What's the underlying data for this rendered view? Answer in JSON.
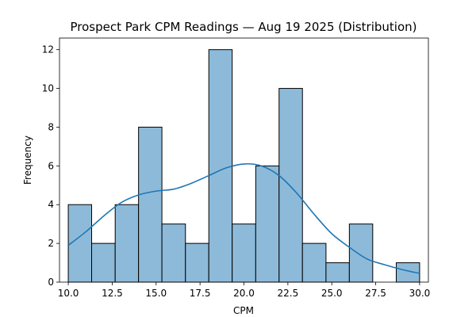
{
  "chart_data": {
    "type": "bar",
    "subtype": "histogram",
    "title": "Prospect Park CPM Readings — Aug 19 2025 (Distribution)",
    "xlabel": "CPM",
    "ylabel": "Frequency",
    "bins": [
      {
        "start": 10.0,
        "end": 11.33,
        "count": 4
      },
      {
        "start": 11.33,
        "end": 12.67,
        "count": 2
      },
      {
        "start": 12.67,
        "end": 14.0,
        "count": 4
      },
      {
        "start": 14.0,
        "end": 15.33,
        "count": 8
      },
      {
        "start": 15.33,
        "end": 16.67,
        "count": 3
      },
      {
        "start": 16.67,
        "end": 18.0,
        "count": 2
      },
      {
        "start": 18.0,
        "end": 19.33,
        "count": 12
      },
      {
        "start": 19.33,
        "end": 20.67,
        "count": 3
      },
      {
        "start": 20.67,
        "end": 22.0,
        "count": 6
      },
      {
        "start": 22.0,
        "end": 23.33,
        "count": 10
      },
      {
        "start": 23.33,
        "end": 24.67,
        "count": 2
      },
      {
        "start": 24.67,
        "end": 26.0,
        "count": 1
      },
      {
        "start": 26.0,
        "end": 27.33,
        "count": 3
      },
      {
        "start": 27.33,
        "end": 28.67,
        "count": 0
      },
      {
        "start": 28.67,
        "end": 30.0,
        "count": 1
      }
    ],
    "kde": {
      "x": [
        10.0,
        11.0,
        12.0,
        13.0,
        14.0,
        15.0,
        16.0,
        17.0,
        18.0,
        19.0,
        20.0,
        21.0,
        22.0,
        23.0,
        24.0,
        25.0,
        26.0,
        27.0,
        28.0,
        29.0,
        30.0
      ],
      "y": [
        1.9,
        2.6,
        3.4,
        4.1,
        4.5,
        4.7,
        4.8,
        5.1,
        5.5,
        5.9,
        6.1,
        6.0,
        5.5,
        4.6,
        3.5,
        2.5,
        1.8,
        1.2,
        0.9,
        0.65,
        0.45
      ]
    },
    "xlim": [
      9.5,
      30.5
    ],
    "ylim": [
      0,
      12.6
    ],
    "xticks": [
      10.0,
      12.5,
      15.0,
      17.5,
      20.0,
      22.5,
      25.0,
      27.5,
      30.0
    ],
    "xtick_labels": [
      "10.0",
      "12.5",
      "15.0",
      "17.5",
      "20.0",
      "22.5",
      "25.0",
      "27.5",
      "30.0"
    ],
    "yticks": [
      0,
      2,
      4,
      6,
      8,
      10,
      12
    ],
    "ytick_labels": [
      "0",
      "2",
      "4",
      "6",
      "8",
      "10",
      "12"
    ],
    "grid": false,
    "legend": "none",
    "colors": {
      "bar_fill": "#8ebad9",
      "bar_edge": "#000000",
      "kde_line": "#1f77b4",
      "axes": "#000000",
      "background": "#ffffff"
    }
  }
}
